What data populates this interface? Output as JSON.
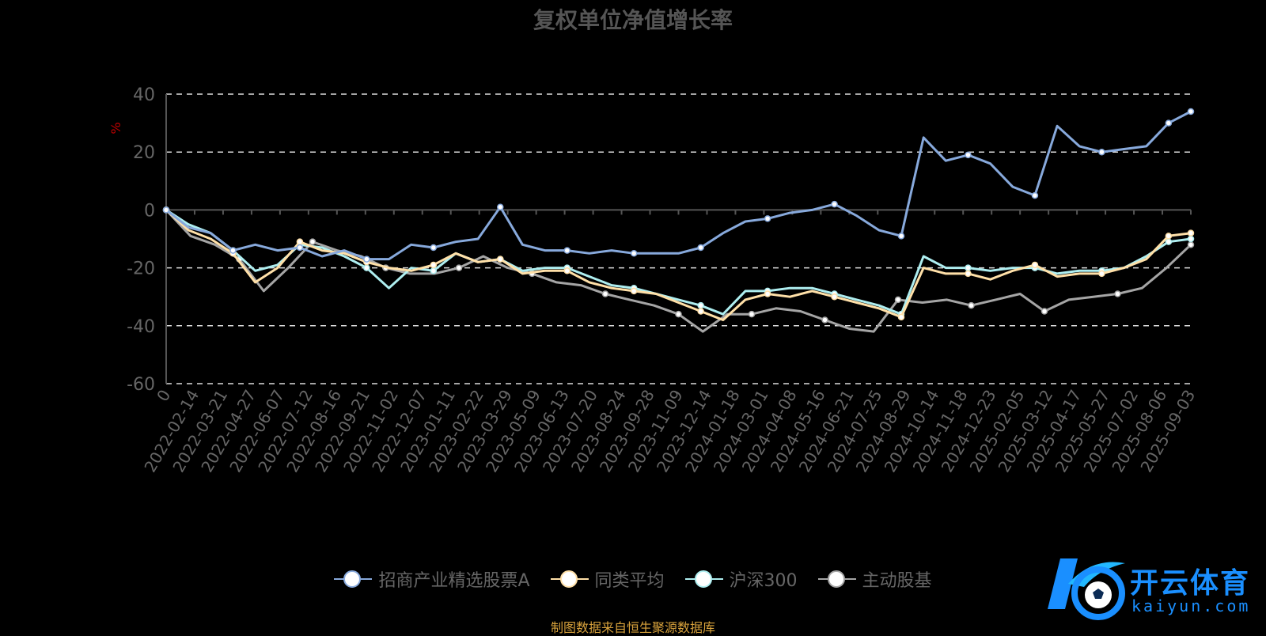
{
  "chart_data": {
    "type": "line",
    "title": "复权单位净值增长率",
    "ylabel": "%",
    "ylim": [
      -60,
      40
    ],
    "yticks": [
      40,
      20,
      0,
      -20,
      -40,
      -60
    ],
    "grid": true,
    "legend_position": "bottom",
    "x_tick_labels": [
      "0",
      "2022-02-14",
      "2022-03-21",
      "2022-04-27",
      "2022-06-07",
      "2022-07-12",
      "2022-08-16",
      "2022-09-21",
      "2022-11-02",
      "2022-12-07",
      "2023-01-11",
      "2023-02-22",
      "2023-03-29",
      "2023-05-09",
      "2023-06-13",
      "2023-07-20",
      "2023-08-24",
      "2023-09-28",
      "2023-11-09",
      "2023-12-14",
      "2024-01-18",
      "2024-03-01",
      "2024-04-08",
      "2024-05-16",
      "2024-06-21",
      "2024-07-25",
      "2024-08-29",
      "2024-10-14",
      "2024-11-18",
      "2024-12-23",
      "2025-02-05",
      "2025-03-12",
      "2025-04-17",
      "2025-05-27",
      "2025-07-02",
      "2025-08-06",
      "2025-09-03"
    ],
    "series": [
      {
        "name": "招商产业精选股票A",
        "color": "#87a9dc",
        "values": [
          0,
          -6,
          -8,
          -14,
          -12,
          -14,
          -13,
          -16,
          -14,
          -17,
          -17,
          -12,
          -13,
          -11,
          -10,
          1,
          -12,
          -14,
          -14,
          -15,
          -14,
          -15,
          -15,
          -15,
          -13,
          -8,
          -4,
          -3,
          -1,
          0,
          2,
          -2,
          -7,
          -9,
          25,
          17,
          19,
          16,
          8,
          5,
          29,
          22,
          20,
          21,
          22,
          30,
          34
        ]
      },
      {
        "name": "同类平均",
        "color": "#ffe0a8",
        "values": [
          0,
          -7,
          -10,
          -15,
          -25,
          -20,
          -11,
          -14,
          -15,
          -18,
          -20,
          -21,
          -19,
          -15,
          -18,
          -17,
          -22,
          -21,
          -21,
          -25,
          -27,
          -28,
          -29,
          -32,
          -35,
          -38,
          -31,
          -29,
          -30,
          -28,
          -30,
          -32,
          -34,
          -37,
          -20,
          -22,
          -22,
          -24,
          -21,
          -19,
          -23,
          -22,
          -22,
          -20,
          -17,
          -9,
          -8
        ]
      },
      {
        "name": "沪深300",
        "color": "#aeeef0",
        "values": [
          0,
          -5,
          -8,
          -14,
          -21,
          -19,
          -12,
          -13,
          -16,
          -20,
          -27,
          -20,
          -21,
          -15,
          -18,
          -17,
          -21,
          -20,
          -20,
          -23,
          -26,
          -27,
          -29,
          -31,
          -33,
          -36,
          -28,
          -28,
          -27,
          -27,
          -29,
          -31,
          -33,
          -36,
          -16,
          -20,
          -20,
          -21,
          -20,
          -20,
          -22,
          -21,
          -21,
          -20,
          -16,
          -11,
          -10
        ]
      },
      {
        "name": "主动股基",
        "color": "#a5a5a5",
        "values": [
          0,
          -9,
          -12,
          -17,
          -28,
          -20,
          -11,
          -14,
          -16,
          -20,
          -22,
          -22,
          -20,
          -16,
          -20,
          -22,
          -25,
          -26,
          -29,
          -31,
          -33,
          -36,
          -42,
          -36,
          -36,
          -34,
          -35,
          -38,
          -41,
          -42,
          -31,
          -32,
          -31,
          -33,
          -31,
          -29,
          -35,
          -31,
          -30,
          -29,
          -27,
          -20,
          -12
        ]
      }
    ],
    "source_note": "制图数据来自恒生聚源数据库"
  },
  "watermark": {
    "name": "开云体育",
    "url": "kaiyun.com"
  }
}
